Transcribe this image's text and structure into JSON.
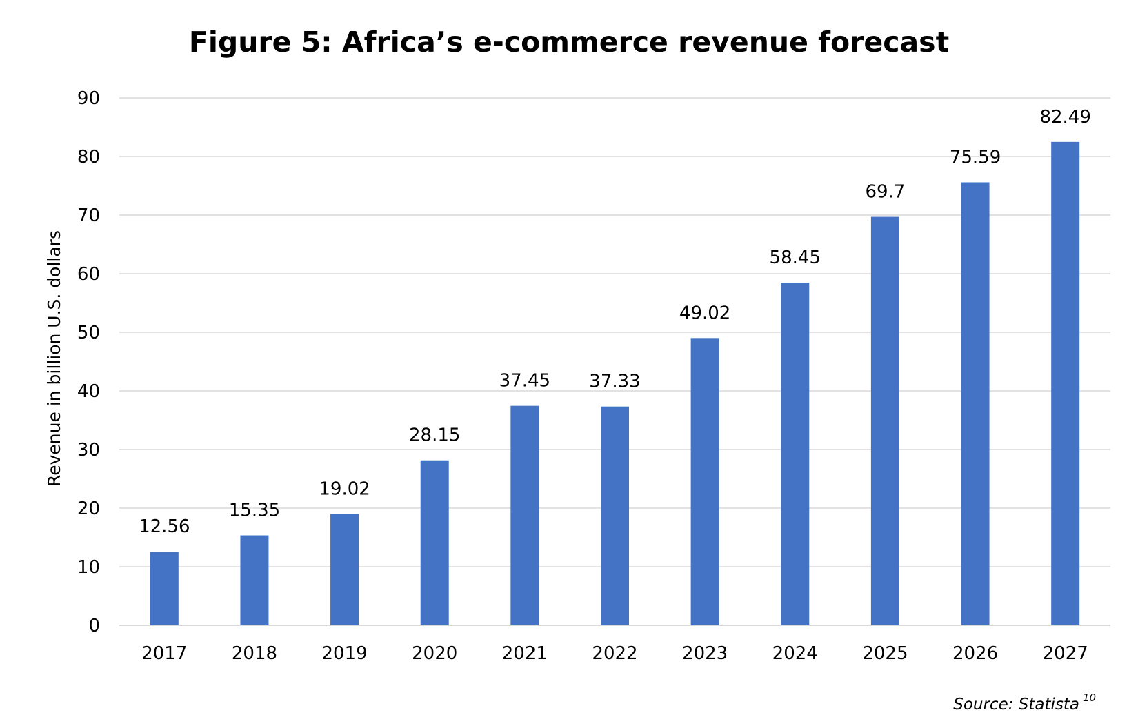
{
  "chart_data": {
    "type": "bar",
    "title": "Figure 5: Africa’s e-commerce revenue forecast",
    "ylabel": "Revenue in billion U.S. dollars",
    "xlabel": "",
    "categories": [
      "2017",
      "2018",
      "2019",
      "2020",
      "2021",
      "2022",
      "2023",
      "2024",
      "2025",
      "2026",
      "2027"
    ],
    "values": [
      12.56,
      15.35,
      19.02,
      28.15,
      37.45,
      37.33,
      49.02,
      58.45,
      69.7,
      75.59,
      82.49
    ],
    "value_labels": [
      "12.56",
      "15.35",
      "19.02",
      "28.15",
      "37.45",
      "37.33",
      "49.02",
      "58.45",
      "69.7",
      "75.59",
      "82.49"
    ],
    "ylim": [
      0,
      90
    ],
    "yticks": [
      0,
      10,
      20,
      30,
      40,
      50,
      60,
      70,
      80,
      90
    ],
    "grid": true,
    "legend": "none",
    "bar_color": "#4472C4",
    "grid_color": "#d9d9d9"
  },
  "source": {
    "text": "Source: Statista",
    "superscript": "10"
  }
}
